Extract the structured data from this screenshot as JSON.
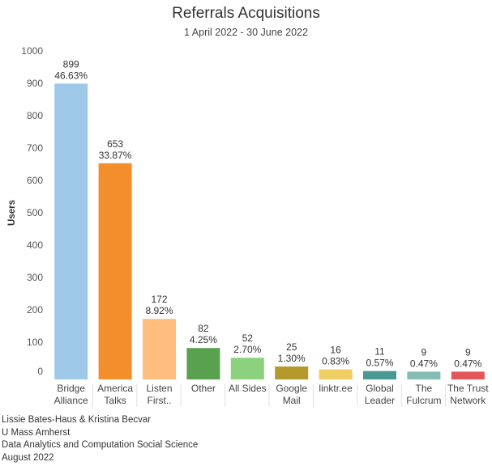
{
  "header": {
    "title": "Referrals Acquisitions",
    "subtitle": "1 April 2022 - 30 June 2022"
  },
  "chart_data": {
    "type": "bar",
    "title": "Referrals Acquisitions",
    "subtitle": "1 April 2022 - 30 June 2022",
    "ylabel": "Users",
    "xlabel": "",
    "ylim": [
      0,
      1000
    ],
    "yticks": [
      0,
      100,
      200,
      300,
      400,
      500,
      600,
      700,
      800,
      900,
      1000
    ],
    "grid": false,
    "categories": [
      [
        "Bridge",
        "Alliance"
      ],
      [
        "America",
        "Talks"
      ],
      [
        "Listen",
        "First.."
      ],
      [
        "Other"
      ],
      [
        "All Sides"
      ],
      [
        "Google",
        "Mail"
      ],
      [
        "linktr.ee"
      ],
      [
        "Global",
        "Leader"
      ],
      [
        "The",
        "Fulcrum"
      ],
      [
        "The Trust",
        "Network"
      ]
    ],
    "values": [
      899,
      653,
      172,
      82,
      52,
      25,
      16,
      11,
      9,
      9
    ],
    "percent_labels": [
      "46.63%",
      "33.87%",
      "8.92%",
      "4.25%",
      "2.70%",
      "1.30%",
      "0.83%",
      "0.57%",
      "0.47%",
      "0.47%"
    ],
    "colors": [
      "#9fc9e8",
      "#f28e2b",
      "#ffbe7d",
      "#59a14f",
      "#8cd17d",
      "#b6992d",
      "#f1ce63",
      "#499894",
      "#86bcb6",
      "#e15759"
    ]
  },
  "credits": [
    "Lissie Bates-Haus & Kristina Becvar",
    "U Mass Amherst",
    "Data Analytics and Computation Social Science",
    "August 2022"
  ]
}
